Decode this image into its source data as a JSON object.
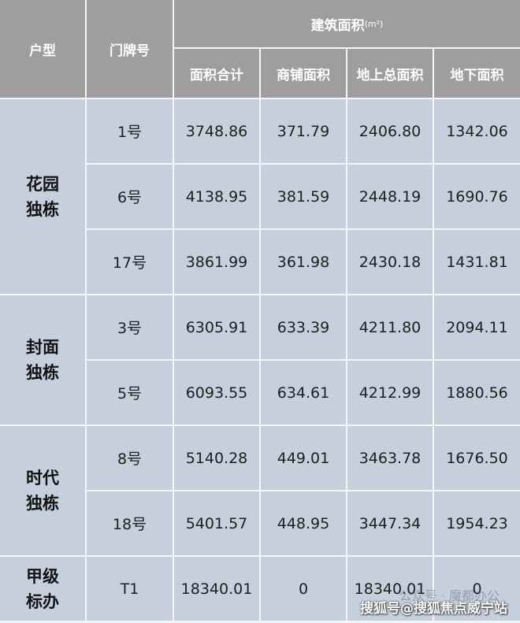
{
  "header": {
    "type": "户型",
    "door": "门牌号",
    "area_group": "建筑面积",
    "area_unit": "(m²)",
    "columns": [
      "面积合计",
      "商铺面积",
      "地上总面积",
      "地下面积"
    ]
  },
  "groups": [
    {
      "name": "花园独栋",
      "rows": [
        {
          "door": "1号",
          "values": [
            "3748.86",
            "371.79",
            "2406.80",
            "1342.06"
          ]
        },
        {
          "door": "6号",
          "values": [
            "4138.95",
            "381.59",
            "2448.19",
            "1690.76"
          ]
        },
        {
          "door": "17号",
          "values": [
            "3861.99",
            "361.98",
            "2430.18",
            "1431.81"
          ]
        }
      ]
    },
    {
      "name": "封面独栋",
      "rows": [
        {
          "door": "3号",
          "values": [
            "6305.91",
            "633.39",
            "4211.80",
            "2094.11"
          ]
        },
        {
          "door": "5号",
          "values": [
            "6093.55",
            "634.61",
            "4212.99",
            "1880.56"
          ]
        }
      ]
    },
    {
      "name": "时代独栋",
      "rows": [
        {
          "door": "8号",
          "values": [
            "5140.28",
            "449.01",
            "3463.78",
            "1676.50"
          ]
        },
        {
          "door": "18号",
          "values": [
            "5401.57",
            "448.95",
            "3447.34",
            "1954.23"
          ]
        }
      ]
    },
    {
      "name": "甲级标办",
      "rows": [
        {
          "door": "T1",
          "values": [
            "18340.01",
            "0",
            "18340.01",
            "0"
          ]
        }
      ]
    }
  ],
  "watermark": "搜狐号@搜狐焦点威宁站",
  "watermark_faint": "公众号 · 魔都办公",
  "colors": {
    "header_bg": "#9e9e9e",
    "body_bg": "#c6d0dc"
  }
}
